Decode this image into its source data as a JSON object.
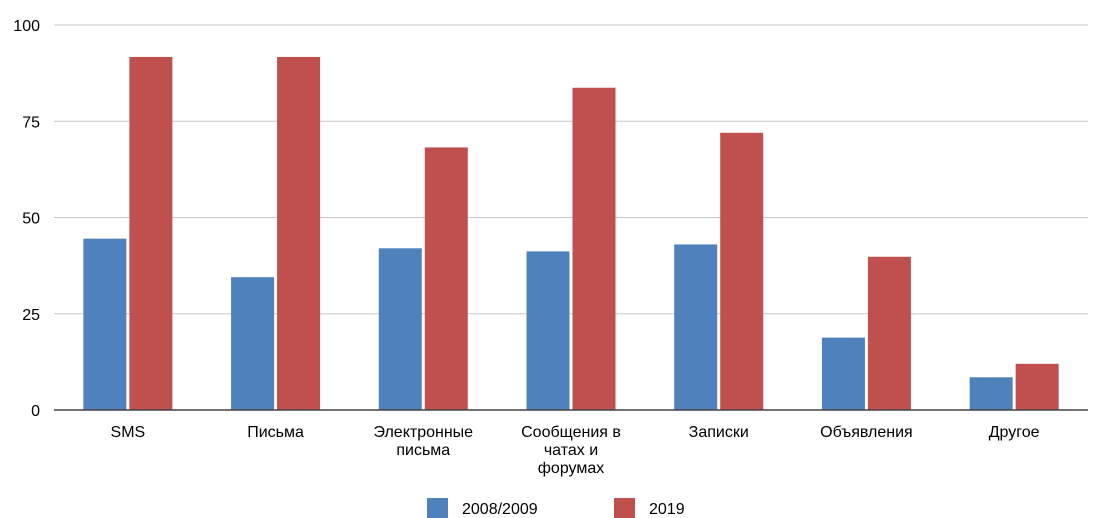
{
  "chart_data": {
    "type": "bar",
    "title": "",
    "xlabel": "",
    "ylabel": "",
    "ylim": [
      0,
      100
    ],
    "yticks": [
      0,
      25,
      50,
      75,
      100
    ],
    "grid": true,
    "legend_position": "bottom",
    "categories": [
      [
        "SMS"
      ],
      [
        "Письма"
      ],
      [
        "Электронные",
        "письма"
      ],
      [
        "Сообщения в",
        "чатах и",
        "форумах"
      ],
      [
        "Записки"
      ],
      [
        "Объявления"
      ],
      [
        "Другое"
      ]
    ],
    "series": [
      {
        "name": "2008/2009",
        "color": "#4f81bd",
        "values": [
          44.5,
          34.5,
          42,
          41.2,
          43,
          18.8,
          8.5
        ]
      },
      {
        "name": "2019",
        "color": "#c0504d",
        "values": [
          91.7,
          91.7,
          68.2,
          83.7,
          72,
          39.8,
          12
        ]
      }
    ]
  }
}
